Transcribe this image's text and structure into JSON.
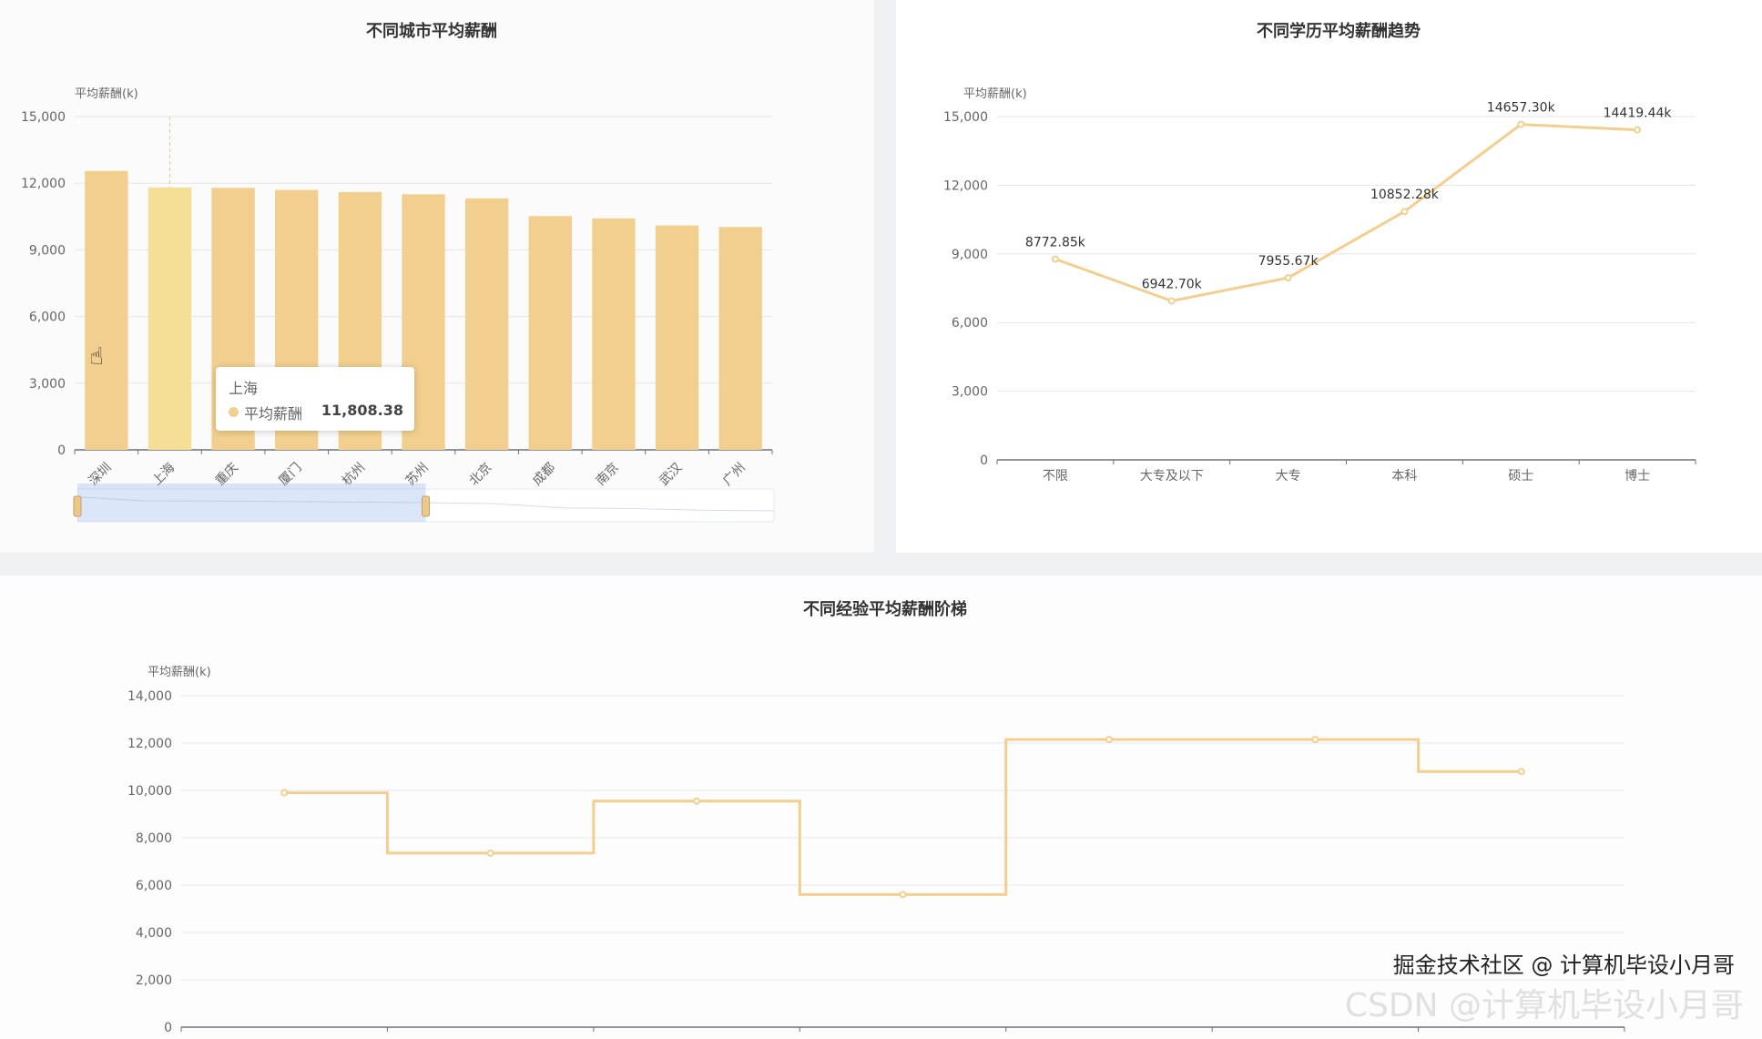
{
  "chart_data": [
    {
      "type": "bar",
      "title": "不同城市平均薪酬",
      "ylabel": "平均薪酬(k)",
      "ylim": [
        0,
        15000
      ],
      "yticks": [
        0,
        3000,
        6000,
        9000,
        12000,
        15000
      ],
      "categories": [
        "深圳",
        "上海",
        "重庆",
        "厦门",
        "杭州",
        "苏州",
        "北京",
        "成都",
        "南京",
        "武汉",
        "广州"
      ],
      "series": [
        {
          "name": "平均薪酬",
          "values": [
            12550,
            11808.38,
            11790,
            11700,
            11600,
            11500,
            11320,
            10520,
            10420,
            10100,
            10030
          ]
        }
      ],
      "color": "#f2cf8e",
      "highlight_color": "#f5df96",
      "grid": true,
      "tooltip": {
        "title": "上海",
        "series": "平均薪酬",
        "value": "11,808.38"
      },
      "data_zoom": {
        "start_percent": 0,
        "end_percent": 50
      }
    },
    {
      "type": "line",
      "title": "不同学历平均薪酬趋势",
      "ylabel": "平均薪酬(k)",
      "ylim": [
        0,
        15000
      ],
      "yticks": [
        0,
        3000,
        6000,
        9000,
        12000,
        15000
      ],
      "categories": [
        "不限",
        "大专及以下",
        "大专",
        "本科",
        "硕士",
        "博士"
      ],
      "values": [
        8772.85,
        6942.7,
        7955.67,
        10852.28,
        14657.3,
        14419.44
      ],
      "labels": [
        "8772.85k",
        "6942.70k",
        "7955.67k",
        "10852.28k",
        "14657.30k",
        "14419.44k"
      ],
      "color": "#f2cf8e",
      "grid": true
    },
    {
      "type": "line",
      "step": "middle",
      "title": "不同经验平均薪酬阶梯",
      "ylabel": "平均薪酬(k)",
      "ylim": [
        0,
        14000
      ],
      "yticks": [
        0,
        2000,
        4000,
        6000,
        8000,
        10000,
        12000,
        14000
      ],
      "values": [
        9900,
        7350,
        9550,
        5600,
        12150,
        12150,
        10800
      ],
      "color": "#f2cf8e",
      "grid": true
    }
  ],
  "watermark": {
    "juejin": "掘金技术社区 @ 计算机毕设小月哥",
    "csdn": "CSDN @计算机毕设小月哥"
  }
}
